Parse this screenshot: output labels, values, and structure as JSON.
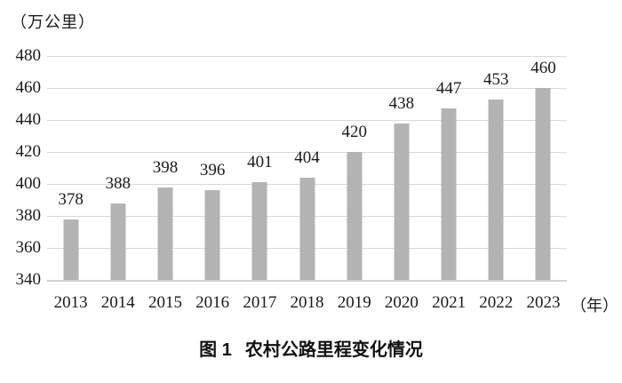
{
  "chart_data": {
    "type": "bar",
    "title": "图1 农村公路里程变化情况",
    "unit_label": "（万公里）",
    "x_unit_label": "（年）",
    "categories": [
      "2013",
      "2014",
      "2015",
      "2016",
      "2017",
      "2018",
      "2019",
      "2020",
      "2021",
      "2022",
      "2023"
    ],
    "values": [
      378,
      388,
      398,
      396,
      401,
      404,
      420,
      438,
      447,
      453,
      460
    ],
    "ylim": [
      340,
      480
    ],
    "yticks": [
      340,
      360,
      380,
      400,
      420,
      440,
      460,
      480
    ],
    "grid": true,
    "legend": "none",
    "bar_color": "#b3b3b3",
    "grid_color": "#d8d8d8",
    "text_color": "#1a1a1a"
  },
  "caption": {
    "figure_label": "图 1",
    "figure_title": "农村公路里程变化情况"
  }
}
